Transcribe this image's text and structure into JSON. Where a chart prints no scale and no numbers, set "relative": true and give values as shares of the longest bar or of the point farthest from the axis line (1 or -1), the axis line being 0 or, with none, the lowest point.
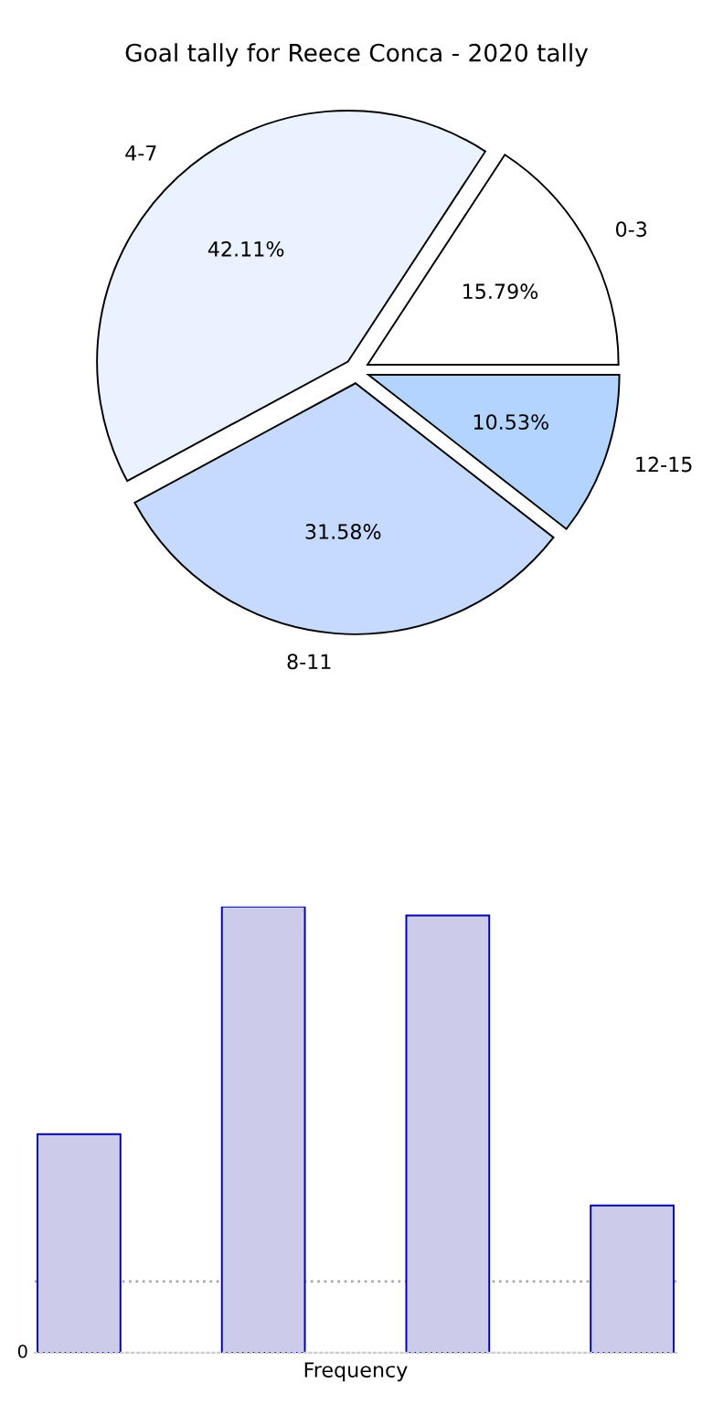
{
  "chart_data": [
    {
      "type": "pie",
      "title": "Goal tally for Reece Conca - 2020 tally",
      "categories": [
        "0-3",
        "4-7",
        "8-11",
        "12-15"
      ],
      "values": [
        15.79,
        42.11,
        31.58,
        10.53
      ],
      "colors": [
        "#ffffff",
        "#ebf2ff",
        "#c6d9ff",
        "#b3d4ff"
      ],
      "value_labels": [
        "15.79%",
        "42.11%",
        "31.58%",
        "10.53%"
      ]
    },
    {
      "type": "bar",
      "relative": true,
      "xlabel": "Frequency",
      "categories": [
        null,
        null,
        null,
        null
      ],
      "values": [
        0.49,
        1,
        0.98,
        0.33
      ],
      "color": "#ccccea",
      "annotations": [
        "0"
      ],
      "ref_lines": [
        {
          "axis": "y",
          "value": 0.16,
          "color": "#aaaaaa",
          "line_style": "dotted"
        }
      ]
    }
  ]
}
